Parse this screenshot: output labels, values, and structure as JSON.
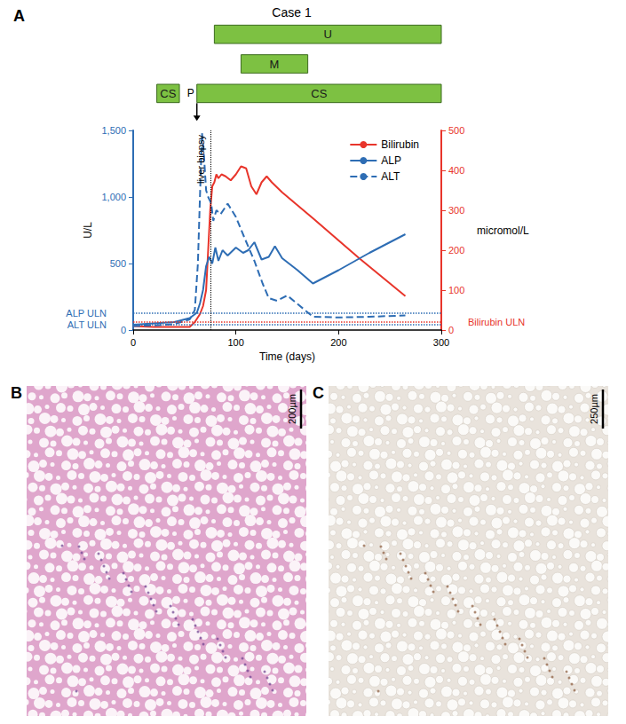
{
  "chart_data": {
    "type": "line",
    "panel_label": "A",
    "title": "Case 1",
    "x_label": "Time (days)",
    "y_label": "U/L",
    "y2_label": "micromol/L",
    "xlim": [
      0,
      300
    ],
    "xticks": [
      0,
      100,
      200,
      300
    ],
    "ylim": [
      0,
      1500
    ],
    "yticks": [
      0,
      500,
      1000,
      1500
    ],
    "y2lim": [
      0,
      500
    ],
    "y2ticks": [
      0,
      100,
      200,
      300,
      400,
      500
    ],
    "grid": false,
    "legend": "upper right",
    "series": [
      {
        "name": "Bilirubin",
        "color": "#e8352b",
        "axis": "y2",
        "line_style": "solid",
        "x": [
          0,
          20,
          40,
          55,
          60,
          65,
          68,
          71,
          73,
          75,
          77,
          79,
          81,
          83,
          86,
          90,
          95,
          100,
          105,
          110,
          115,
          120,
          125,
          130,
          135,
          145,
          175,
          220,
          265
        ],
        "values": [
          10,
          8,
          8,
          8,
          20,
          40,
          60,
          100,
          200,
          300,
          360,
          370,
          390,
          380,
          390,
          385,
          375,
          390,
          410,
          405,
          360,
          340,
          370,
          385,
          370,
          345,
          280,
          180,
          85
        ]
      },
      {
        "name": "ALP",
        "color": "#2e6db4",
        "axis": "y",
        "line_style": "solid",
        "x": [
          0,
          20,
          40,
          55,
          62,
          65,
          68,
          71,
          74,
          77,
          80,
          83,
          87,
          92,
          100,
          107,
          112,
          118,
          125,
          132,
          138,
          145,
          160,
          175,
          200,
          230,
          265
        ],
        "values": [
          40,
          50,
          60,
          90,
          130,
          200,
          300,
          480,
          550,
          500,
          620,
          520,
          600,
          560,
          620,
          580,
          600,
          660,
          530,
          550,
          630,
          540,
          450,
          350,
          450,
          580,
          720
        ]
      },
      {
        "name": "ALT",
        "color": "#2e6db4",
        "axis": "y",
        "line_style": "dashed",
        "x": [
          0,
          20,
          40,
          55,
          60,
          63,
          65,
          67,
          69,
          71,
          73,
          76,
          78,
          81,
          85,
          92,
          100,
          108,
          118,
          126,
          132,
          140,
          150,
          175,
          200,
          230,
          265
        ],
        "values": [
          30,
          35,
          45,
          80,
          150,
          500,
          1000,
          1480,
          1300,
          1050,
          1000,
          950,
          820,
          900,
          870,
          950,
          850,
          700,
          520,
          350,
          240,
          220,
          260,
          100,
          95,
          100,
          110
        ]
      }
    ],
    "reference_lines": [
      {
        "label": "ALP ULN",
        "value": 130,
        "axis": "y",
        "color": "#2e6db4"
      },
      {
        "label": "ALT ULN",
        "value": 40,
        "axis": "y",
        "color": "#2e6db4"
      },
      {
        "label": "Bilirubin ULN",
        "value": 21,
        "axis": "y2",
        "color": "#e8352b"
      }
    ],
    "annotations": [
      {
        "text": "liver biopsy",
        "x": 75
      }
    ],
    "treatment_bars": [
      {
        "label": "U",
        "start": 79,
        "end": 300
      },
      {
        "label": "M",
        "start": 105,
        "end": 170
      },
      {
        "label": "CS",
        "start": 23,
        "end": 45
      },
      {
        "label": "CS",
        "start": 62,
        "end": 300
      }
    ],
    "treatment_marker": {
      "label": "P",
      "x": 62
    }
  },
  "panels": [
    {
      "label": "B",
      "scale_bar": "200µm"
    },
    {
      "label": "C",
      "scale_bar": "250µm"
    }
  ]
}
